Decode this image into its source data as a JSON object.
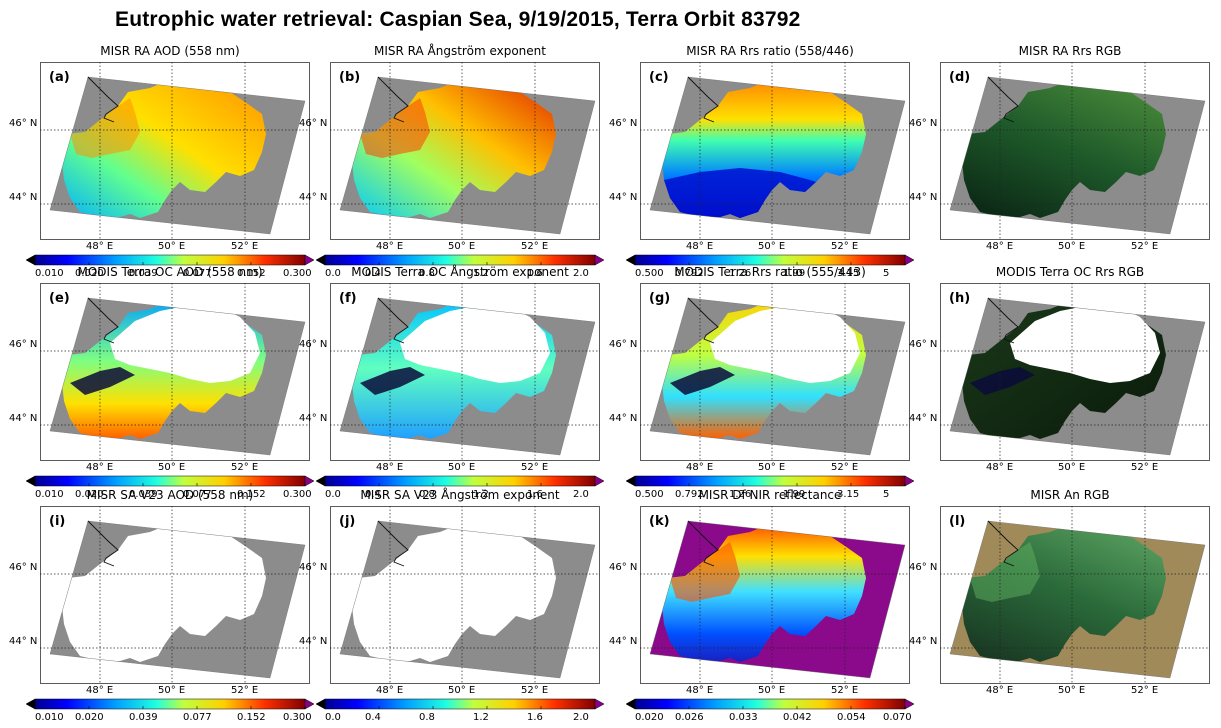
{
  "title": "Eutrophic water retrieval:  Caspian Sea, 9/19/2015, Terra Orbit 83792",
  "lat_ticks": [
    "46° N",
    "44° N"
  ],
  "lon_ticks": [
    "48° E",
    "50° E",
    "52° E"
  ],
  "colorbar_sets": {
    "aod": [
      "0.010",
      "0.020",
      "0.039",
      "0.077",
      "0.152",
      "0.300"
    ],
    "ang": [
      "0.0",
      "0.4",
      "0.8",
      "1.2",
      "1.6",
      "2.0"
    ],
    "rrs": [
      "0.500",
      "0.792",
      "1.26",
      "1.99",
      "3.15",
      "5"
    ],
    "nir": [
      "0.020",
      "0.026",
      "0.033",
      "0.042",
      "0.054",
      "0.070"
    ]
  },
  "panels": [
    {
      "label": "(a)",
      "title": "MISR RA AOD (558 nm)",
      "style": "aod",
      "cbar": "aod"
    },
    {
      "label": "(b)",
      "title": "MISR RA  Ångström exponent",
      "style": "ang",
      "cbar": "ang"
    },
    {
      "label": "(c)",
      "title": "MISR RA Rrs ratio (558/446)",
      "style": "rrs",
      "cbar": "rrs"
    },
    {
      "label": "(d)",
      "title": "MISR RA Rrs RGB",
      "style": "rgb",
      "cbar": ""
    },
    {
      "label": "(e)",
      "title": "MODIS Terra OC AOD (558 nm)",
      "style": "mod_aod",
      "cbar": "aod"
    },
    {
      "label": "(f)",
      "title": "MODIS Terra OC Ångström exponent",
      "style": "mod_ang",
      "cbar": "ang"
    },
    {
      "label": "(g)",
      "title": "MODIS Terra Rrs ratio (555/443)",
      "style": "mod_rrs",
      "cbar": "rrs"
    },
    {
      "label": "(h)",
      "title": "MODIS Terra OC Rrs RGB",
      "style": "mod_rgb",
      "cbar": ""
    },
    {
      "label": "(i)",
      "title": "MISR SA V23 AOD (558 nm)",
      "style": "blank",
      "cbar": "aod"
    },
    {
      "label": "(j)",
      "title": "MISR SA V23 Ångström exponent",
      "style": "blank",
      "cbar": "ang"
    },
    {
      "label": "(k)",
      "title": "MISR Df NIR  reflectance",
      "style": "nir",
      "cbar": "nir"
    },
    {
      "label": "(l)",
      "title": "MISR An RGB",
      "style": "an_rgb",
      "cbar": ""
    }
  ],
  "colors": {
    "land": "#8c8c8c",
    "outside": "#ffffff",
    "nir_land": "#8b0a8b"
  }
}
